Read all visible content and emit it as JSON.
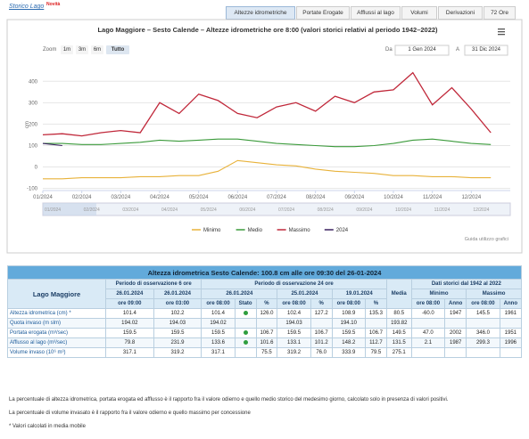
{
  "header": {
    "link": "Storico Lago",
    "badge": "Novità",
    "tabs": [
      "Altezze idrometriche",
      "Portate Erogate",
      "Afflussi al lago",
      "Volumi",
      "Derivazioni",
      "72 Ore"
    ]
  },
  "chart_data": {
    "type": "line",
    "title": "Lago Maggiore – Sesto Calende – Altezze idrometriche ore 8:00 (valori storici relativi al periodo 1942–2022)",
    "zoom_label": "Zoom",
    "zoom_buttons": [
      "1m",
      "3m",
      "6m",
      "Tutto"
    ],
    "from_label": "Da",
    "from": "1 Gen 2024",
    "to_label": "A",
    "to": "31 Dic 2024",
    "y_label": "cm",
    "guide": "Guida utilizzo grafici",
    "categories": [
      "01/2024",
      null,
      "02/2024",
      null,
      "03/2024",
      null,
      "04/2024",
      null,
      "05/2024",
      null,
      "06/2024",
      null,
      "07/2024",
      null,
      "08/2024",
      null,
      "09/2024",
      null,
      "10/2024",
      null,
      "11/2024",
      null,
      "12/2024",
      null
    ],
    "series": [
      {
        "name": "Minimo",
        "color": "#e8b23a",
        "values": [
          -55,
          -55,
          -50,
          -50,
          -50,
          -45,
          -45,
          -40,
          -40,
          -20,
          30,
          20,
          10,
          5,
          -10,
          -20,
          -25,
          -30,
          -40,
          -40,
          -45,
          -45,
          -50,
          -50
        ]
      },
      {
        "name": "Medio",
        "color": "#3a9a3a",
        "values": [
          110,
          110,
          105,
          105,
          110,
          115,
          125,
          120,
          125,
          130,
          130,
          120,
          110,
          105,
          100,
          95,
          95,
          100,
          110,
          125,
          130,
          120,
          110,
          105
        ]
      },
      {
        "name": "Massimo",
        "color": "#c0283a",
        "values": [
          150,
          155,
          145,
          160,
          170,
          160,
          300,
          250,
          340,
          310,
          250,
          230,
          280,
          300,
          260,
          330,
          300,
          350,
          360,
          440,
          290,
          370,
          270,
          160
        ]
      },
      {
        "name": "2024",
        "color": "#3a2060",
        "values": [
          110,
          100,
          null,
          null,
          null,
          null,
          null,
          null,
          null,
          null,
          null,
          null,
          null,
          null,
          null,
          null,
          null,
          null,
          null,
          null,
          null,
          null,
          null,
          null
        ]
      }
    ],
    "ylim": [
      -110,
      480
    ],
    "yticks": [
      -100,
      0,
      100,
      200,
      300,
      400
    ],
    "grid": true
  },
  "table": {
    "title": "Altezza idrometrica Sesto Calende: 100.8 cm alle ore 09:30 del 26-01-2024",
    "lake": "Lago Maggiore",
    "groups": [
      "Periodo di osservazione 6 ore",
      "Periodo di osservazione 24 ore",
      "Media",
      "Dati storici dal 1942 al 2022"
    ],
    "dates": [
      "26.01.2024",
      "26.01.2024",
      "26.01.2024",
      "25.01.2024",
      "19.01.2024"
    ],
    "stat_heads": [
      "Minimo",
      "Massimo"
    ],
    "subheads": [
      "ore 09:00",
      "ore 03:00",
      "ore 08:00",
      "Stato",
      "%",
      "ore 08:00",
      "%",
      "ore 08:00",
      "%",
      "ore 08:00",
      "Anno",
      "ore 08:00",
      "Anno"
    ],
    "status_color": "#2e9e3e",
    "rows": [
      {
        "label": "Altezza idrometrica (cm) *",
        "status": true,
        "cells": [
          "101.4",
          "102.2",
          "101.4",
          "126.0",
          "102.4",
          "127.2",
          "108.9",
          "135.3",
          "80.5",
          "-60.0",
          "1947",
          "145.5",
          "1961"
        ]
      },
      {
        "label": "Quota invaso (m slm)",
        "status": false,
        "cells": [
          "194.02",
          "194.03",
          "194.02",
          null,
          "194.03",
          null,
          "194.10",
          null,
          "193.82",
          null,
          null,
          null,
          null
        ]
      },
      {
        "label": "Portata erogata (m³/sec)",
        "status": true,
        "cells": [
          "159.5",
          "159.5",
          "159.5",
          "106.7",
          "159.5",
          "106.7",
          "159.5",
          "106.7",
          "149.5",
          "47.0",
          "2002",
          "346.0",
          "1951"
        ]
      },
      {
        "label": "Afflusso al lago (m³/sec)",
        "status": true,
        "cells": [
          "79.8",
          "231.9",
          "133.6",
          "101.6",
          "133.1",
          "101.2",
          "148.2",
          "112.7",
          "131.5",
          "2.1",
          "1987",
          "299.3",
          "1996"
        ]
      },
      {
        "label": "Volume invaso (10⁶ m³)",
        "status": false,
        "cells": [
          "317.1",
          "319.2",
          "317.1",
          "75.5",
          "319.2",
          "76.0",
          "333.9",
          "79.5",
          "275.1",
          null,
          null,
          null,
          null
        ]
      }
    ]
  },
  "notes": [
    "La percentuale di altezza idrometrica, portata erogata ed afflusso è il rapporto fra il valore odierno e quello medio storico del medesimo giorno, calcolato solo in presenza di valori positivi.",
    "La percentuale di volume invasato è il rapporto fra il valore odierno e quello massimo per concessione",
    "* Valori calcolati in media mobile"
  ]
}
